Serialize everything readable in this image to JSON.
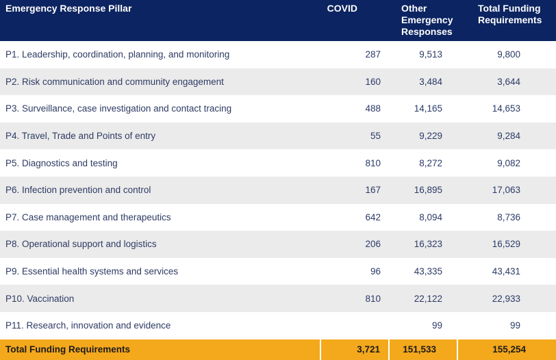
{
  "table": {
    "headers": {
      "pillar": "Emergency Response Pillar",
      "covid": "COVID",
      "other_line1": "Other",
      "other_line2": "Emergency",
      "other_line3": "Responses",
      "total_line1": "Total Funding",
      "total_line2": "Requirements"
    },
    "rows": [
      {
        "pillar": "P1. Leadership, coordination, planning, and monitoring",
        "covid": "287",
        "other": "9,513",
        "total": "9,800"
      },
      {
        "pillar": "P2. Risk communication and community engagement",
        "covid": "160",
        "other": "3,484",
        "total": "3,644"
      },
      {
        "pillar": "P3. Surveillance, case investigation and contact tracing",
        "covid": "488",
        "other": "14,165",
        "total": "14,653"
      },
      {
        "pillar": "P4. Travel, Trade and Points of entry",
        "covid": "55",
        "other": "9,229",
        "total": "9,284"
      },
      {
        "pillar": "P5. Diagnostics and testing",
        "covid": "810",
        "other": "8,272",
        "total": "9,082"
      },
      {
        "pillar": "P6. Infection prevention and control",
        "covid": "167",
        "other": "16,895",
        "total": "17,063"
      },
      {
        "pillar": "P7. Case management and therapeutics",
        "covid": "642",
        "other": "8,094",
        "total": "8,736"
      },
      {
        "pillar": "P8. Operational support and logistics",
        "covid": "206",
        "other": "16,323",
        "total": "16,529"
      },
      {
        "pillar": "P9. Essential health systems and services",
        "covid": "96",
        "other": "43,335",
        "total": "43,431"
      },
      {
        "pillar": "P10. Vaccination",
        "covid": "810",
        "other": "22,122",
        "total": "22,933"
      },
      {
        "pillar": "P11. Research, innovation and evidence",
        "covid": "",
        "other": "99",
        "total": "99"
      }
    ],
    "footer": {
      "label": "Total Funding Requirements",
      "covid": "3,721",
      "other": "151,533",
      "total": "155,254"
    }
  }
}
